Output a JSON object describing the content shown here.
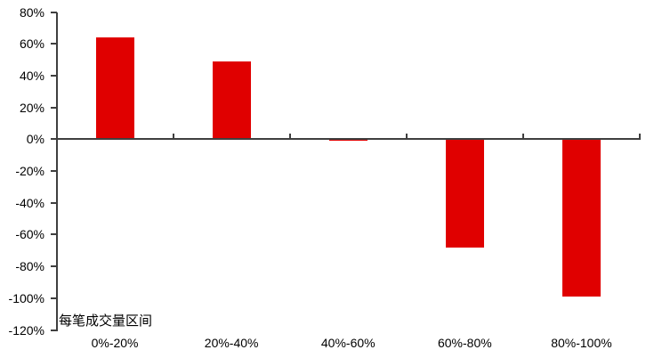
{
  "chart_data": {
    "type": "bar",
    "title": "",
    "categories": [
      "0%-20%",
      "20%-40%",
      "40%-60%",
      "60%-80%",
      "80%-100%"
    ],
    "values": [
      64,
      49,
      -1,
      -68,
      -99
    ],
    "value_suffix": "%",
    "xlabel": "每笔成交量区间",
    "ylabel": "",
    "ylim": [
      -120,
      80
    ],
    "ytick_step": 20,
    "ytick_labels": [
      "80%",
      "60%",
      "40%",
      "20%",
      "0%",
      "-20%",
      "-40%",
      "-60%",
      "-80%",
      "-100%",
      "-120%"
    ],
    "bar_color": "#e00000",
    "axis_color": "#3f3f3f",
    "text_color": "#000000",
    "background_color": "#ffffff",
    "grid": false,
    "legend": "none"
  }
}
